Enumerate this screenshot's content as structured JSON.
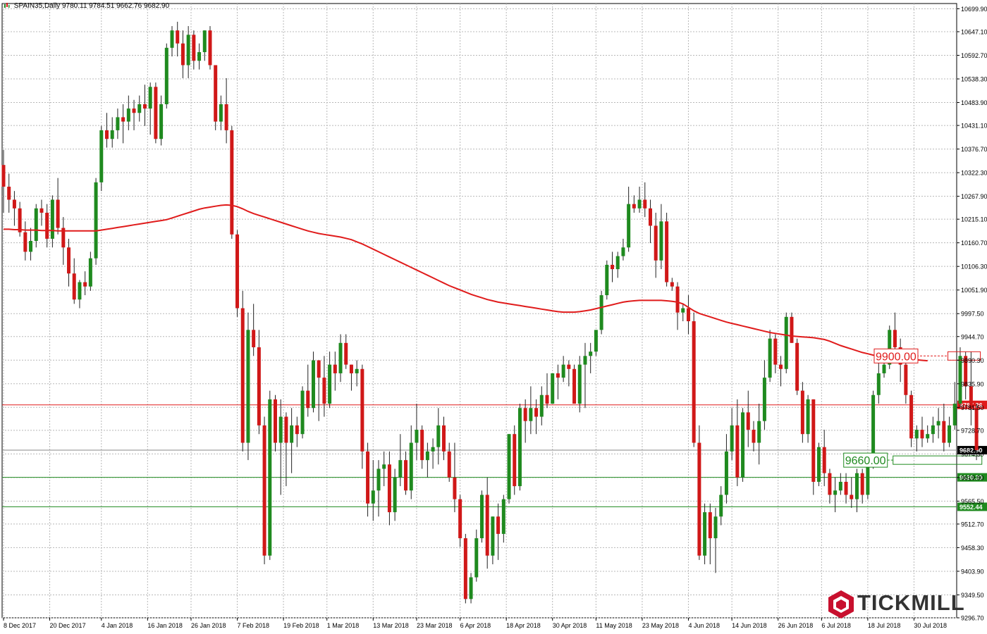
{
  "header": {
    "symbol": "SPAIN35,Daily",
    "ohlc": "9780.11 9784.51 9662.76 9682.90"
  },
  "logo": {
    "text": "TICKMILL",
    "icon": "tickmill-hexagon-icon",
    "color": "#c8102e"
  },
  "colors": {
    "up": "#1f8a1f",
    "down": "#d01818",
    "ma": "#e01b1b",
    "grid": "#b8b8b8",
    "axis": "#000000",
    "current": "#888888",
    "resistance": "#e01b1b",
    "support": "#1f8a1f"
  },
  "chart_data": {
    "type": "candlestick",
    "instrument": "SPAIN35",
    "timeframe": "Daily",
    "y_ticks": [
      "10699.90",
      "10647.10",
      "10592.70",
      "10538.30",
      "10483.90",
      "10431.10",
      "10376.70",
      "10322.30",
      "10267.90",
      "10215.10",
      "10160.70",
      "10106.30",
      "10051.90",
      "9997.50",
      "9944.70",
      "9890.30",
      "9835.90",
      "9781.50",
      "9728.70",
      "9674.30",
      "9619.90",
      "9565.50",
      "9512.70",
      "9458.30",
      "9403.90",
      "9349.50",
      "9296.70"
    ],
    "ylim": [
      9296.7,
      10712
    ],
    "x_ticks": [
      {
        "label": "8 Dec 2017",
        "index": 0
      },
      {
        "label": "20 Dec 2017",
        "index": 8.5
      },
      {
        "label": "4 Jan 2018",
        "index": 18
      },
      {
        "label": "16 Jan 2018",
        "index": 26.5
      },
      {
        "label": "26 Jan 2018",
        "index": 34.5
      },
      {
        "label": "7 Feb 2018",
        "index": 43
      },
      {
        "label": "19 Feb 2018",
        "index": 51.5
      },
      {
        "label": "1 Mar 2018",
        "index": 59.5
      },
      {
        "label": "13 Mar 2018",
        "index": 68
      },
      {
        "label": "23 Mar 2018",
        "index": 76
      },
      {
        "label": "6 Apr 2018",
        "index": 84
      },
      {
        "label": "18 Apr 2018",
        "index": 92.5
      },
      {
        "label": "30 Apr 2018",
        "index": 101
      },
      {
        "label": "11 May 2018",
        "index": 109
      },
      {
        "label": "23 May 2018",
        "index": 117.5
      },
      {
        "label": "4 Jun 2018",
        "index": 126
      },
      {
        "label": "14 Jun 2018",
        "index": 134
      },
      {
        "label": "26 Jun 2018",
        "index": 142.5
      },
      {
        "label": "6 Jul 2018",
        "index": 150.5
      },
      {
        "label": "18 Jul 2018",
        "index": 159
      },
      {
        "label": "30 Jul 2018",
        "index": 167.5
      }
    ],
    "ohlc": [
      [
        10340,
        10375,
        10230,
        10290
      ],
      [
        10290,
        10320,
        10230,
        10260
      ],
      [
        10260,
        10280,
        10200,
        10240
      ],
      [
        10240,
        10255,
        10175,
        10185
      ],
      [
        10185,
        10210,
        10120,
        10140
      ],
      [
        10140,
        10195,
        10120,
        10165
      ],
      [
        10165,
        10250,
        10150,
        10240
      ],
      [
        10240,
        10260,
        10200,
        10230
      ],
      [
        10230,
        10250,
        10150,
        10170
      ],
      [
        10170,
        10270,
        10150,
        10260
      ],
      [
        10260,
        10310,
        10180,
        10195
      ],
      [
        10195,
        10220,
        10110,
        10150
      ],
      [
        10150,
        10170,
        10060,
        10090
      ],
      [
        10090,
        10125,
        10020,
        10030
      ],
      [
        10030,
        10075,
        10010,
        10070
      ],
      [
        10070,
        10095,
        10040,
        10060
      ],
      [
        10060,
        10140,
        10050,
        10125
      ],
      [
        10125,
        10310,
        10110,
        10300
      ],
      [
        10300,
        10430,
        10280,
        10420
      ],
      [
        10420,
        10460,
        10380,
        10400
      ],
      [
        10400,
        10450,
        10380,
        10420
      ],
      [
        10420,
        10470,
        10400,
        10450
      ],
      [
        10450,
        10480,
        10390,
        10440
      ],
      [
        10440,
        10500,
        10420,
        10470
      ],
      [
        10470,
        10490,
        10420,
        10460
      ],
      [
        10460,
        10500,
        10440,
        10480
      ],
      [
        10480,
        10525,
        10430,
        10470
      ],
      [
        10470,
        10530,
        10410,
        10520
      ],
      [
        10520,
        10530,
        10390,
        10400
      ],
      [
        10400,
        10500,
        10385,
        10480
      ],
      [
        10480,
        10620,
        10470,
        10610
      ],
      [
        10610,
        10660,
        10590,
        10650
      ],
      [
        10650,
        10670,
        10590,
        10620
      ],
      [
        10620,
        10650,
        10540,
        10570
      ],
      [
        10570,
        10660,
        10540,
        10640
      ],
      [
        10640,
        10650,
        10560,
        10580
      ],
      [
        10580,
        10620,
        10560,
        10600
      ],
      [
        10600,
        10650,
        10580,
        10650
      ],
      [
        10650,
        10660,
        10560,
        10570
      ],
      [
        10570,
        10570,
        10420,
        10440
      ],
      [
        10440,
        10500,
        10420,
        10480
      ],
      [
        10480,
        10540,
        10390,
        10420
      ],
      [
        10420,
        10430,
        10170,
        10180
      ],
      [
        10180,
        10190,
        9990,
        10010
      ],
      [
        10010,
        10050,
        9680,
        9700
      ],
      [
        9700,
        10000,
        9660,
        9960
      ],
      [
        9960,
        10020,
        9900,
        9920
      ],
      [
        9920,
        9960,
        9720,
        9740
      ],
      [
        9740,
        9760,
        9420,
        9440
      ],
      [
        9440,
        9820,
        9430,
        9800
      ],
      [
        9800,
        9810,
        9680,
        9700
      ],
      [
        9700,
        9800,
        9580,
        9760
      ],
      [
        9760,
        9770,
        9600,
        9700
      ],
      [
        9700,
        9780,
        9630,
        9740
      ],
      [
        9740,
        9760,
        9690,
        9720
      ],
      [
        9720,
        9830,
        9710,
        9820
      ],
      [
        9820,
        9880,
        9760,
        9780
      ],
      [
        9780,
        9910,
        9770,
        9890
      ],
      [
        9890,
        9890,
        9750,
        9850
      ],
      [
        9850,
        9900,
        9760,
        9790
      ],
      [
        9790,
        9910,
        9780,
        9880
      ],
      [
        9880,
        9910,
        9820,
        9860
      ],
      [
        9860,
        9950,
        9840,
        9930
      ],
      [
        9930,
        9950,
        9870,
        9880
      ],
      [
        9880,
        9880,
        9820,
        9860
      ],
      [
        9860,
        9890,
        9830,
        9870
      ],
      [
        9870,
        9880,
        9640,
        9680
      ],
      [
        9680,
        9700,
        9530,
        9560
      ],
      [
        9560,
        9660,
        9520,
        9590
      ],
      [
        9590,
        9660,
        9530,
        9640
      ],
      [
        9640,
        9680,
        9600,
        9650
      ],
      [
        9650,
        9680,
        9510,
        9540
      ],
      [
        9540,
        9640,
        9520,
        9620
      ],
      [
        9620,
        9720,
        9600,
        9660
      ],
      [
        9660,
        9680,
        9580,
        9590
      ],
      [
        9590,
        9740,
        9570,
        9700
      ],
      [
        9700,
        9790,
        9660,
        9730
      ],
      [
        9730,
        9740,
        9640,
        9660
      ],
      [
        9660,
        9700,
        9620,
        9680
      ],
      [
        9680,
        9710,
        9640,
        9690
      ],
      [
        9690,
        9780,
        9650,
        9740
      ],
      [
        9740,
        9760,
        9660,
        9680
      ],
      [
        9680,
        9700,
        9610,
        9620
      ],
      [
        9620,
        9700,
        9540,
        9570
      ],
      [
        9570,
        9580,
        9460,
        9480
      ],
      [
        9480,
        9490,
        9330,
        9340
      ],
      [
        9340,
        9400,
        9330,
        9390
      ],
      [
        9390,
        9500,
        9380,
        9480
      ],
      [
        9480,
        9590,
        9470,
        9580
      ],
      [
        9580,
        9620,
        9410,
        9440
      ],
      [
        9440,
        9530,
        9420,
        9530
      ],
      [
        9530,
        9560,
        9430,
        9490
      ],
      [
        9490,
        9580,
        9470,
        9570
      ],
      [
        9570,
        9720,
        9560,
        9720
      ],
      [
        9720,
        9740,
        9580,
        9600
      ],
      [
        9600,
        9790,
        9590,
        9780
      ],
      [
        9780,
        9800,
        9700,
        9750
      ],
      [
        9750,
        9830,
        9720,
        9780
      ],
      [
        9780,
        9800,
        9720,
        9760
      ],
      [
        9760,
        9830,
        9740,
        9810
      ],
      [
        9810,
        9860,
        9780,
        9790
      ],
      [
        9790,
        9860,
        9790,
        9860
      ],
      [
        9860,
        9880,
        9800,
        9850
      ],
      [
        9850,
        9900,
        9840,
        9880
      ],
      [
        9880,
        9890,
        9830,
        9870
      ],
      [
        9870,
        9880,
        9790,
        9790
      ],
      [
        9790,
        9900,
        9770,
        9880
      ],
      [
        9880,
        9930,
        9780,
        9900
      ],
      [
        9900,
        9930,
        9860,
        9910
      ],
      [
        9910,
        9960,
        9900,
        9960
      ],
      [
        9960,
        10050,
        9950,
        10040
      ],
      [
        10040,
        10120,
        10030,
        10110
      ],
      [
        10110,
        10140,
        10070,
        10100
      ],
      [
        10100,
        10140,
        10080,
        10130
      ],
      [
        10130,
        10170,
        10120,
        10150
      ],
      [
        10150,
        10290,
        10140,
        10250
      ],
      [
        10250,
        10270,
        10230,
        10240
      ],
      [
        10240,
        10290,
        10230,
        10260
      ],
      [
        10260,
        10300,
        10220,
        10240
      ],
      [
        10240,
        10260,
        10160,
        10200
      ],
      [
        10200,
        10230,
        10080,
        10120
      ],
      [
        10120,
        10250,
        10100,
        10210
      ],
      [
        10210,
        10230,
        10060,
        10070
      ],
      [
        10070,
        10080,
        10050,
        10060
      ],
      [
        10060,
        10070,
        9960,
        10000
      ],
      [
        10000,
        10020,
        9980,
        10010
      ],
      [
        10010,
        10040,
        9950,
        9980
      ],
      [
        9980,
        10000,
        9690,
        9700
      ],
      [
        9700,
        9740,
        9430,
        9440
      ],
      [
        9440,
        9560,
        9420,
        9540
      ],
      [
        9540,
        9560,
        9420,
        9480
      ],
      [
        9480,
        9550,
        9400,
        9530
      ],
      [
        9530,
        9600,
        9510,
        9580
      ],
      [
        9580,
        9720,
        9560,
        9680
      ],
      [
        9680,
        9780,
        9660,
        9740
      ],
      [
        9740,
        9800,
        9600,
        9620
      ],
      [
        9620,
        9780,
        9610,
        9770
      ],
      [
        9770,
        9820,
        9690,
        9730
      ],
      [
        9730,
        9750,
        9680,
        9700
      ],
      [
        9700,
        9790,
        9650,
        9750
      ],
      [
        9750,
        9890,
        9730,
        9850
      ],
      [
        9850,
        9960,
        9840,
        9940
      ],
      [
        9940,
        9950,
        9860,
        9880
      ],
      [
        9880,
        9900,
        9830,
        9870
      ],
      [
        9870,
        10000,
        9860,
        9990
      ],
      [
        9990,
        10000,
        9930,
        9930
      ],
      [
        9930,
        9940,
        9810,
        9820
      ],
      [
        9820,
        9840,
        9700,
        9720
      ],
      [
        9720,
        9810,
        9700,
        9800
      ],
      [
        9800,
        9800,
        9580,
        9610
      ],
      [
        9610,
        9700,
        9600,
        9690
      ],
      [
        9690,
        9730,
        9600,
        9630
      ],
      [
        9630,
        9640,
        9560,
        9580
      ],
      [
        9580,
        9620,
        9540,
        9590
      ],
      [
        9590,
        9630,
        9580,
        9610
      ],
      [
        9610,
        9630,
        9560,
        9580
      ],
      [
        9580,
        9620,
        9550,
        9570
      ],
      [
        9570,
        9640,
        9540,
        9630
      ],
      [
        9630,
        9640,
        9560,
        9580
      ],
      [
        9580,
        9660,
        9570,
        9650
      ],
      [
        9650,
        9820,
        9640,
        9810
      ],
      [
        9810,
        9890,
        9790,
        9860
      ],
      [
        9860,
        9910,
        9850,
        9880
      ],
      [
        9880,
        9970,
        9870,
        9960
      ],
      [
        9960,
        10000,
        9900,
        9920
      ],
      [
        9920,
        9940,
        9840,
        9880
      ],
      [
        9880,
        9900,
        9790,
        9810
      ],
      [
        9810,
        9820,
        9690,
        9710
      ],
      [
        9710,
        9740,
        9680,
        9730
      ],
      [
        9730,
        9760,
        9690,
        9710
      ],
      [
        9710,
        9740,
        9700,
        9720
      ],
      [
        9720,
        9760,
        9700,
        9740
      ],
      [
        9740,
        9780,
        9710,
        9750
      ],
      [
        9750,
        9790,
        9680,
        9700
      ],
      [
        9700,
        9760,
        9690,
        9740
      ],
      [
        9740,
        9840,
        9730,
        9790
      ],
      [
        9790,
        9920,
        9780,
        9900
      ],
      [
        9900,
        9910,
        9800,
        9830
      ],
      [
        9830,
        9910,
        9740,
        9780
      ],
      [
        9780,
        9790,
        9660,
        9683
      ]
    ],
    "ma_values": [
      10192,
      10192,
      10191,
      10191,
      10190,
      10190,
      10190,
      10189,
      10189,
      10189,
      10188,
      10188,
      10188,
      10188,
      10188,
      10188,
      10188,
      10188,
      10190,
      10192,
      10194,
      10196,
      10198,
      10200,
      10202,
      10204,
      10206,
      10208,
      10210,
      10212,
      10214,
      10218,
      10222,
      10226,
      10230,
      10234,
      10238,
      10241,
      10243,
      10245,
      10247,
      10248,
      10247,
      10244,
      10239,
      10233,
      10228,
      10224,
      10220,
      10216,
      10212,
      10208,
      10204,
      10200,
      10196,
      10192,
      10188,
      10185,
      10182,
      10180,
      10178,
      10176,
      10174,
      10171,
      10168,
      10163,
      10158,
      10152,
      10146,
      10140,
      10134,
      10128,
      10122,
      10116,
      10110,
      10104,
      10098,
      10092,
      10086,
      10080,
      10074,
      10068,
      10062,
      10057,
      10052,
      10047,
      10042,
      10038,
      10034,
      10030,
      10027,
      10024,
      10022,
      10020,
      10018,
      10016,
      10014,
      10012,
      10010,
      10008,
      10006,
      10004,
      10002,
      10001,
      10001,
      10001,
      10002,
      10004,
      10006,
      10009,
      10012,
      10015,
      10018,
      10021,
      10024,
      10026,
      10027,
      10028,
      10028,
      10028,
      10028,
      10028,
      10027,
      10026,
      10024,
      10020,
      10012,
      10004,
      9998,
      9994,
      9990,
      9986,
      9982,
      9978,
      9975,
      9972,
      9969,
      9966,
      9963,
      9960,
      9957,
      9954,
      9952,
      9950,
      9948,
      9946,
      9945,
      9944,
      9943,
      9942,
      9940,
      9938,
      9934,
      9929,
      9924,
      9920,
      9916,
      9912,
      9908,
      9905,
      9902,
      9900,
      9898,
      9897,
      9896,
      9894,
      9893,
      9892,
      9891,
      9890,
      9889
    ],
    "price_lines": [
      {
        "value": 9787.26,
        "label": "9787.26",
        "role": "resistance-red"
      },
      {
        "value": 9682.9,
        "label": "9682.90",
        "role": "current-price"
      },
      {
        "value": 9620.3,
        "label": "9620.30",
        "role": "support"
      },
      {
        "value": 9552.44,
        "label": "9552.44",
        "role": "support"
      }
    ],
    "annotations": [
      {
        "label": "9900.00",
        "value": 9900.0,
        "role": "target-red"
      },
      {
        "label": "9660.00",
        "value": 9660.0,
        "role": "target-green"
      }
    ],
    "grid": true
  }
}
